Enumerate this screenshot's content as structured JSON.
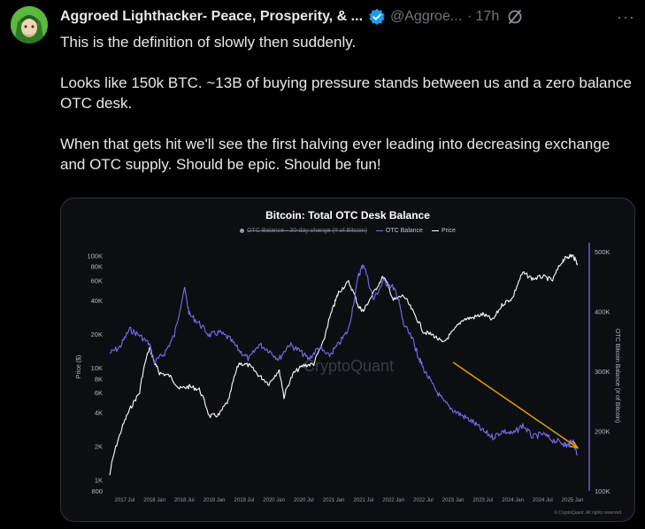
{
  "tweet": {
    "display_name": "Aggroed Lighthacker- Peace, Prosperity, & ...",
    "handle": "@Aggroe...",
    "time": "17h",
    "more": "···",
    "paragraphs": [
      "This is the definition of slowly then suddenly.",
      "Looks like 150k BTC.  ~13B of buying pressure stands between us and a zero balance OTC desk.",
      "When that gets hit we'll see the first halving ever leading into decreasing exchange and OTC supply.  Should be epic.  Should be fun!"
    ]
  },
  "chart_data": {
    "type": "line",
    "title": "Bitcoin: Total OTC Desk Balance",
    "legend": [
      {
        "label": "OTC Balance - 30-day change (# of Bitcoin)",
        "color": "#9a9aa5",
        "disabled": true
      },
      {
        "label": "OTC Balance",
        "color": "#7b6cf0"
      },
      {
        "label": "Price",
        "color": "#ffffff"
      }
    ],
    "legend_position": "top",
    "ylabel_left": "Price ($)",
    "ylabel_right": "OTC Bitcoin Balance (# of Bitcoin)",
    "y_left_scale": "log",
    "y_left_ticks": [
      "100K",
      "80K",
      "60K",
      "40K",
      "20K",
      "10K",
      "8K",
      "6K",
      "4K",
      "2K",
      "1K",
      "800"
    ],
    "y_right_ticks": [
      "500K",
      "400K",
      "300K",
      "200K",
      "100K"
    ],
    "x_ticks": [
      "2017 Jul",
      "2018 Jan",
      "2018 Jul",
      "2019 Jan",
      "2019 Jul",
      "2020 Jan",
      "2020 Jul",
      "2021 Jan",
      "2021 Jul",
      "2022 Jan",
      "2022 Jul",
      "2023 Jan",
      "2023 Jul",
      "2024 Jan",
      "2024 Jul",
      "2025 Jan"
    ],
    "watermark": "CryptoQuant",
    "footer": "© CryptoQuant. All rights reserved",
    "series": [
      {
        "name": "Price",
        "color": "#ffffff",
        "axis": "left",
        "points": [
          [
            "2017-04",
            1100
          ],
          [
            "2017-06",
            2500
          ],
          [
            "2017-08",
            4200
          ],
          [
            "2017-10",
            6000
          ],
          [
            "2017-12",
            15000
          ],
          [
            "2018-01",
            11000
          ],
          [
            "2018-02",
            9000
          ],
          [
            "2018-04",
            8500
          ],
          [
            "2018-06",
            6500
          ],
          [
            "2018-08",
            6800
          ],
          [
            "2018-10",
            6400
          ],
          [
            "2018-12",
            3700
          ],
          [
            "2019-02",
            3800
          ],
          [
            "2019-04",
            5200
          ],
          [
            "2019-06",
            11000
          ],
          [
            "2019-08",
            10500
          ],
          [
            "2019-10",
            8500
          ],
          [
            "2019-12",
            7200
          ],
          [
            "2020-02",
            9500
          ],
          [
            "2020-03",
            5500
          ],
          [
            "2020-05",
            9000
          ],
          [
            "2020-07",
            10500
          ],
          [
            "2020-09",
            10800
          ],
          [
            "2020-11",
            17000
          ],
          [
            "2021-01",
            35000
          ],
          [
            "2021-02",
            47000
          ],
          [
            "2021-04",
            58000
          ],
          [
            "2021-06",
            35000
          ],
          [
            "2021-07",
            32000
          ],
          [
            "2021-09",
            46000
          ],
          [
            "2021-11",
            65000
          ],
          [
            "2022-01",
            40000
          ],
          [
            "2022-03",
            44000
          ],
          [
            "2022-05",
            31000
          ],
          [
            "2022-07",
            21000
          ],
          [
            "2022-09",
            19500
          ],
          [
            "2022-11",
            16500
          ],
          [
            "2023-01",
            21000
          ],
          [
            "2023-03",
            27000
          ],
          [
            "2023-05",
            28000
          ],
          [
            "2023-07",
            30000
          ],
          [
            "2023-09",
            26500
          ],
          [
            "2023-11",
            37000
          ],
          [
            "2024-01",
            42000
          ],
          [
            "2024-03",
            70000
          ],
          [
            "2024-05",
            62000
          ],
          [
            "2024-07",
            65000
          ],
          [
            "2024-09",
            60000
          ],
          [
            "2024-11",
            90000
          ],
          [
            "2024-12",
            98000
          ],
          [
            "2025-01",
            100000
          ],
          [
            "2025-02",
            85000
          ]
        ]
      },
      {
        "name": "OTC Balance",
        "color": "#7b6cf0",
        "axis": "right",
        "points": [
          [
            "2017-04",
            330000
          ],
          [
            "2017-06",
            340000
          ],
          [
            "2017-08",
            370000
          ],
          [
            "2017-10",
            360000
          ],
          [
            "2017-12",
            345000
          ],
          [
            "2018-01",
            315000
          ],
          [
            "2018-03",
            330000
          ],
          [
            "2018-05",
            360000
          ],
          [
            "2018-07",
            440000
          ],
          [
            "2018-08",
            395000
          ],
          [
            "2018-10",
            380000
          ],
          [
            "2018-12",
            360000
          ],
          [
            "2019-02",
            365000
          ],
          [
            "2019-04",
            355000
          ],
          [
            "2019-06",
            335000
          ],
          [
            "2019-08",
            320000
          ],
          [
            "2019-10",
            345000
          ],
          [
            "2019-12",
            335000
          ],
          [
            "2020-02",
            320000
          ],
          [
            "2020-04",
            345000
          ],
          [
            "2020-06",
            335000
          ],
          [
            "2020-08",
            320000
          ],
          [
            "2020-10",
            340000
          ],
          [
            "2020-12",
            325000
          ],
          [
            "2021-02",
            345000
          ],
          [
            "2021-04",
            370000
          ],
          [
            "2021-06",
            460000
          ],
          [
            "2021-07",
            480000
          ],
          [
            "2021-09",
            420000
          ],
          [
            "2021-11",
            450000
          ],
          [
            "2022-01",
            440000
          ],
          [
            "2022-02",
            420000
          ],
          [
            "2022-03",
            380000
          ],
          [
            "2022-05",
            350000
          ],
          [
            "2022-06",
            325000
          ],
          [
            "2022-07",
            305000
          ],
          [
            "2022-09",
            275000
          ],
          [
            "2022-11",
            250000
          ],
          [
            "2023-01",
            235000
          ],
          [
            "2023-03",
            225000
          ],
          [
            "2023-05",
            215000
          ],
          [
            "2023-07",
            200000
          ],
          [
            "2023-09",
            190000
          ],
          [
            "2023-11",
            200000
          ],
          [
            "2024-01",
            195000
          ],
          [
            "2024-03",
            210000
          ],
          [
            "2024-05",
            190000
          ],
          [
            "2024-07",
            195000
          ],
          [
            "2024-09",
            185000
          ],
          [
            "2024-11",
            180000
          ],
          [
            "2024-12",
            175000
          ],
          [
            "2025-01",
            185000
          ],
          [
            "2025-02",
            160000
          ]
        ]
      }
    ],
    "annotations": [
      {
        "type": "arrow",
        "color": "#e0a300",
        "from": [
          "2023-01",
          315000
        ],
        "to": [
          "2025-02",
          172000
        ]
      }
    ]
  }
}
